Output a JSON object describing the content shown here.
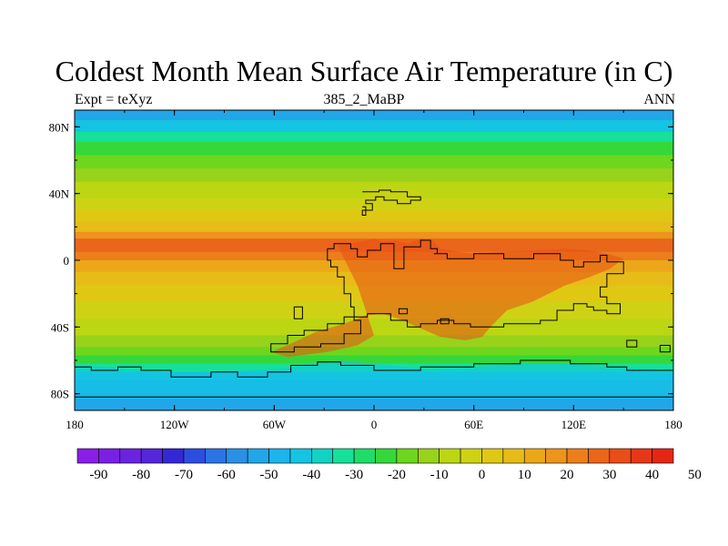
{
  "title": "Coldest Month Mean Surface Air Temperature (in C)",
  "left_label": "Expt = teXyz",
  "center_label": "385_2_MaBP",
  "right_label": "ANN",
  "lat_ticks": [
    {
      "label": "80N",
      "value": 80
    },
    {
      "label": "40N",
      "value": 40
    },
    {
      "label": "0",
      "value": 0
    },
    {
      "label": "40S",
      "value": -40
    },
    {
      "label": "80S",
      "value": -80
    }
  ],
  "lon_ticks": [
    {
      "label": "180",
      "value": -180
    },
    {
      "label": "120W",
      "value": -120
    },
    {
      "label": "60W",
      "value": -60
    },
    {
      "label": "0",
      "value": 0
    },
    {
      "label": "60E",
      "value": 60
    },
    {
      "label": "120E",
      "value": 120
    },
    {
      "label": "180",
      "value": 180
    }
  ],
  "colorbar": {
    "labels": [
      "-90",
      "-80",
      "-70",
      "-60",
      "-50",
      "-40",
      "-30",
      "-20",
      "-10",
      "0",
      "10",
      "20",
      "30",
      "40",
      "50"
    ],
    "colors": [
      "#8a1ee6",
      "#7a20e2",
      "#6a24de",
      "#5626da",
      "#3428d6",
      "#2c4ee0",
      "#2a74e6",
      "#2a90e6",
      "#22a6e8",
      "#1cb4ea",
      "#14c4e2",
      "#12d2c2",
      "#16e09a",
      "#1fdc6a",
      "#34d83a",
      "#6ed61c",
      "#98d21a",
      "#bcd614",
      "#cfd214",
      "#dfc814",
      "#e7bc18",
      "#eaa818",
      "#ec941c",
      "#ec7e1c",
      "#ea661a",
      "#e84e18",
      "#e63818",
      "#e62614"
    ]
  },
  "zonal_bands": [
    {
      "lat_top": 90,
      "lat_bottom": 84,
      "color": "#22a6e8"
    },
    {
      "lat_top": 84,
      "lat_bottom": 77,
      "color": "#14c4e2"
    },
    {
      "lat_top": 77,
      "lat_bottom": 71,
      "color": "#16e09a"
    },
    {
      "lat_top": 71,
      "lat_bottom": 63,
      "color": "#34d83a"
    },
    {
      "lat_top": 63,
      "lat_bottom": 55,
      "color": "#6ed61c"
    },
    {
      "lat_top": 55,
      "lat_bottom": 47,
      "color": "#98d21a"
    },
    {
      "lat_top": 47,
      "lat_bottom": 37,
      "color": "#bcd614"
    },
    {
      "lat_top": 37,
      "lat_bottom": 30,
      "color": "#cfd214"
    },
    {
      "lat_top": 30,
      "lat_bottom": 23,
      "color": "#dfc814"
    },
    {
      "lat_top": 23,
      "lat_bottom": 17,
      "color": "#e7bc18"
    },
    {
      "lat_top": 17,
      "lat_bottom": 13,
      "color": "#ec941c"
    },
    {
      "lat_top": 13,
      "lat_bottom": 5,
      "color": "#ea661a"
    },
    {
      "lat_top": 5,
      "lat_bottom": 0,
      "color": "#ec7e1c"
    },
    {
      "lat_top": 0,
      "lat_bottom": -7,
      "color": "#eaa818"
    },
    {
      "lat_top": -7,
      "lat_bottom": -15,
      "color": "#e7bc18"
    },
    {
      "lat_top": -15,
      "lat_bottom": -25,
      "color": "#dfc814"
    },
    {
      "lat_top": -25,
      "lat_bottom": -35,
      "color": "#cfd214"
    },
    {
      "lat_top": -35,
      "lat_bottom": -45,
      "color": "#bcd614"
    },
    {
      "lat_top": -45,
      "lat_bottom": -52,
      "color": "#98d21a"
    },
    {
      "lat_top": -52,
      "lat_bottom": -57,
      "color": "#6ed61c"
    },
    {
      "lat_top": -57,
      "lat_bottom": -62,
      "color": "#34d83a"
    },
    {
      "lat_top": -62,
      "lat_bottom": -67,
      "color": "#16e09a"
    },
    {
      "lat_top": -67,
      "lat_bottom": -72,
      "color": "#14c4e2"
    },
    {
      "lat_top": -72,
      "lat_bottom": -80,
      "color": "#1cb4ea"
    },
    {
      "lat_top": -80,
      "lat_bottom": -90,
      "color": "#22a6e8"
    }
  ],
  "landmasses": [
    {
      "name": "north-polar-continent",
      "color": "#cfd214",
      "points": [
        [
          -7,
          42
        ],
        [
          -2,
          43
        ],
        [
          2,
          44
        ],
        [
          10,
          44
        ],
        [
          12,
          43
        ],
        [
          20,
          43
        ],
        [
          26,
          42
        ],
        [
          30,
          41
        ],
        [
          26,
          38
        ],
        [
          20,
          37
        ],
        [
          10,
          36
        ],
        [
          4,
          37
        ],
        [
          0,
          36
        ],
        [
          -2,
          34
        ],
        [
          -5,
          35
        ],
        [
          -5,
          40
        ]
      ]
    },
    {
      "name": "equatorial-main-continent",
      "color": "#e84e18",
      "points": [
        [
          -22,
          9
        ],
        [
          -15,
          10
        ],
        [
          -8,
          11
        ],
        [
          0,
          13
        ],
        [
          5,
          11
        ],
        [
          13,
          12
        ],
        [
          20,
          10
        ],
        [
          28,
          13
        ],
        [
          35,
          12
        ],
        [
          40,
          7
        ],
        [
          50,
          5
        ],
        [
          60,
          4
        ],
        [
          80,
          5
        ],
        [
          100,
          6
        ],
        [
          115,
          7
        ],
        [
          128,
          6
        ],
        [
          140,
          4
        ],
        [
          150,
          1
        ],
        [
          142,
          -5
        ],
        [
          130,
          -10
        ],
        [
          115,
          -15
        ],
        [
          105,
          -20
        ],
        [
          95,
          -25
        ],
        [
          80,
          -30
        ],
        [
          70,
          -40
        ],
        [
          65,
          -46
        ],
        [
          55,
          -48
        ],
        [
          40,
          -46
        ],
        [
          26,
          -40
        ],
        [
          15,
          -35
        ],
        [
          5,
          -32
        ],
        [
          -5,
          -33
        ],
        [
          -18,
          -38
        ],
        [
          -35,
          -43
        ],
        [
          -50,
          -50
        ],
        [
          -62,
          -55
        ],
        [
          -52,
          -58
        ],
        [
          -28,
          -55
        ],
        [
          -10,
          -51
        ],
        [
          0,
          -45
        ],
        [
          -5,
          -30
        ],
        [
          -10,
          -15
        ],
        [
          -15,
          -5
        ]
      ]
    },
    {
      "name": "southern-continent",
      "color": "#14c4e2",
      "points": [
        [
          -180,
          -63
        ],
        [
          -160,
          -64
        ],
        [
          -140,
          -66
        ],
        [
          -120,
          -68
        ],
        [
          -100,
          -67
        ],
        [
          -80,
          -66
        ],
        [
          -55,
          -65
        ],
        [
          -40,
          -62
        ],
        [
          -20,
          -60
        ],
        [
          0,
          -62
        ],
        [
          30,
          -65
        ],
        [
          60,
          -64
        ],
        [
          90,
          -62
        ],
        [
          120,
          -62
        ],
        [
          140,
          -64
        ],
        [
          160,
          -65
        ],
        [
          180,
          -66
        ],
        [
          180,
          -83
        ],
        [
          -180,
          -83
        ]
      ]
    }
  ],
  "coastlines": [
    {
      "name": "north-polar-continent-coastline",
      "points": [
        [
          -7,
          41
        ],
        [
          3,
          41
        ],
        [
          3,
          42
        ],
        [
          10,
          42
        ],
        [
          10,
          41
        ],
        [
          20,
          41
        ],
        [
          20,
          38
        ],
        [
          28,
          38
        ],
        [
          28,
          36
        ],
        [
          22,
          36
        ],
        [
          22,
          34
        ],
        [
          14,
          34
        ],
        [
          14,
          36
        ],
        [
          6,
          36
        ],
        [
          6,
          38
        ],
        [
          1,
          38
        ],
        [
          1,
          36
        ],
        [
          -5,
          36
        ],
        [
          -5,
          34
        ],
        [
          -1,
          34
        ],
        [
          -1,
          30
        ],
        [
          -5,
          30
        ],
        [
          -5,
          32
        ],
        [
          -7,
          32
        ]
      ]
    },
    {
      "name": "equatorial-main-continent-coastline",
      "points": [
        [
          -28,
          7
        ],
        [
          -24,
          7
        ],
        [
          -24,
          10
        ],
        [
          -14,
          10
        ],
        [
          -14,
          7
        ],
        [
          -10,
          7
        ],
        [
          -10,
          2
        ],
        [
          -4,
          2
        ],
        [
          -4,
          6
        ],
        [
          4,
          6
        ],
        [
          4,
          10
        ],
        [
          12,
          10
        ],
        [
          12,
          -5
        ],
        [
          18,
          -5
        ],
        [
          18,
          8
        ],
        [
          28,
          8
        ],
        [
          28,
          12
        ],
        [
          34,
          12
        ],
        [
          34,
          7
        ],
        [
          38,
          7
        ],
        [
          38,
          4
        ],
        [
          36,
          4
        ],
        [
          44,
          4
        ],
        [
          44,
          1
        ],
        [
          60,
          1
        ],
        [
          60,
          4
        ],
        [
          78,
          4
        ],
        [
          78,
          1
        ],
        [
          96,
          1
        ],
        [
          96,
          4
        ],
        [
          112,
          4
        ],
        [
          112,
          0
        ],
        [
          120,
          0
        ],
        [
          120,
          -4
        ],
        [
          126,
          -4
        ],
        [
          126,
          -1
        ],
        [
          136,
          -1
        ],
        [
          136,
          3
        ],
        [
          140,
          3
        ],
        [
          140,
          -1
        ],
        [
          150,
          -1
        ],
        [
          150,
          -8
        ],
        [
          140,
          -8
        ],
        [
          140,
          -16
        ],
        [
          136,
          -16
        ],
        [
          136,
          -22
        ],
        [
          140,
          -22
        ],
        [
          140,
          -26
        ],
        [
          148,
          -26
        ],
        [
          148,
          -32
        ],
        [
          140,
          -32
        ],
        [
          140,
          -30
        ],
        [
          132,
          -30
        ],
        [
          132,
          -28
        ],
        [
          128,
          -28
        ],
        [
          128,
          -26
        ],
        [
          120,
          -26
        ],
        [
          120,
          -30
        ],
        [
          110,
          -30
        ],
        [
          110,
          -36
        ],
        [
          100,
          -36
        ],
        [
          100,
          -38
        ],
        [
          78,
          -38
        ],
        [
          78,
          -40
        ],
        [
          58,
          -40
        ],
        [
          58,
          -38
        ],
        [
          48,
          -38
        ],
        [
          48,
          -36
        ],
        [
          38,
          -36
        ],
        [
          38,
          -38
        ],
        [
          28,
          -38
        ],
        [
          28,
          -40
        ],
        [
          20,
          -40
        ],
        [
          20,
          -36
        ],
        [
          10,
          -36
        ],
        [
          10,
          -32
        ],
        [
          -4,
          -32
        ],
        [
          -4,
          -34
        ],
        [
          -18,
          -34
        ],
        [
          -18,
          -38
        ],
        [
          -28,
          -38
        ],
        [
          -28,
          -42
        ],
        [
          -42,
          -42
        ],
        [
          -42,
          -45
        ],
        [
          -52,
          -45
        ],
        [
          -52,
          -50
        ],
        [
          -62,
          -50
        ],
        [
          -62,
          -55
        ],
        [
          -48,
          -55
        ],
        [
          -48,
          -52
        ],
        [
          -32,
          -52
        ],
        [
          -32,
          -50
        ],
        [
          -18,
          -50
        ],
        [
          -18,
          -44
        ],
        [
          -8,
          -44
        ],
        [
          -8,
          -36
        ],
        [
          -12,
          -36
        ],
        [
          -12,
          -28
        ],
        [
          -14,
          -28
        ],
        [
          -14,
          -20
        ],
        [
          -18,
          -20
        ],
        [
          -18,
          -10
        ],
        [
          -22,
          -10
        ],
        [
          -22,
          -4
        ],
        [
          -26,
          -4
        ],
        [
          -26,
          0
        ],
        [
          -28,
          0
        ],
        [
          -28,
          7
        ]
      ]
    },
    {
      "name": "southern-continent-coastline",
      "points": [
        [
          -180,
          -64
        ],
        [
          -170,
          -64
        ],
        [
          -170,
          -66
        ],
        [
          -154,
          -66
        ],
        [
          -154,
          -64
        ],
        [
          -140,
          -64
        ],
        [
          -140,
          -66
        ],
        [
          -122,
          -66
        ],
        [
          -122,
          -70
        ],
        [
          -98,
          -70
        ],
        [
          -98,
          -67
        ],
        [
          -82,
          -67
        ],
        [
          -82,
          -70
        ],
        [
          -64,
          -70
        ],
        [
          -64,
          -67
        ],
        [
          -50,
          -67
        ],
        [
          -50,
          -63
        ],
        [
          -34,
          -63
        ],
        [
          -34,
          -61
        ],
        [
          -20,
          -61
        ],
        [
          -20,
          -63
        ],
        [
          0,
          -63
        ],
        [
          0,
          -66
        ],
        [
          28,
          -66
        ],
        [
          28,
          -64
        ],
        [
          60,
          -64
        ],
        [
          60,
          -62
        ],
        [
          88,
          -62
        ],
        [
          88,
          -60
        ],
        [
          118,
          -60
        ],
        [
          118,
          -62
        ],
        [
          140,
          -62
        ],
        [
          140,
          -64
        ],
        [
          152,
          -64
        ],
        [
          152,
          -66
        ],
        [
          180,
          -66
        ],
        [
          180,
          -82
        ],
        [
          -180,
          -82
        ],
        [
          -180,
          -64
        ]
      ]
    }
  ],
  "islands": [
    {
      "name": "small-island-1",
      "points": [
        [
          -48,
          -28
        ],
        [
          -43,
          -28
        ],
        [
          -43,
          -35
        ],
        [
          -48,
          -35
        ]
      ]
    },
    {
      "name": "small-island-2",
      "points": [
        [
          15,
          -29
        ],
        [
          20,
          -29
        ],
        [
          20,
          -32
        ],
        [
          15,
          -32
        ]
      ]
    },
    {
      "name": "small-island-3",
      "points": [
        [
          40,
          -35
        ],
        [
          45,
          -35
        ],
        [
          45,
          -38
        ],
        [
          40,
          -38
        ]
      ]
    },
    {
      "name": "small-island-4",
      "points": [
        [
          172,
          -51
        ],
        [
          178,
          -51
        ],
        [
          178,
          -55
        ],
        [
          172,
          -55
        ]
      ]
    },
    {
      "name": "small-island-5",
      "points": [
        [
          152,
          -48
        ],
        [
          158,
          -48
        ],
        [
          158,
          -52
        ],
        [
          152,
          -52
        ]
      ]
    },
    {
      "name": "small-island-6",
      "points": [
        [
          -7,
          30
        ],
        [
          -5,
          30
        ],
        [
          -5,
          27
        ],
        [
          -7,
          27
        ]
      ]
    }
  ]
}
